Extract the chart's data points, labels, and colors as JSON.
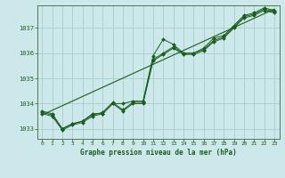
{
  "title": "Graphe pression niveau de la mer (hPa)",
  "background_color": "#cce8ea",
  "grid_color": "#aacccc",
  "line_color": "#1a5c1a",
  "marker_color": "#1a5c1a",
  "xlim": [
    -0.5,
    23.5
  ],
  "ylim": [
    1032.6,
    1037.9
  ],
  "xticks": [
    0,
    1,
    2,
    3,
    4,
    5,
    6,
    7,
    8,
    9,
    10,
    11,
    12,
    13,
    14,
    15,
    16,
    17,
    18,
    19,
    20,
    21,
    22,
    23
  ],
  "yticks": [
    1033,
    1034,
    1035,
    1036,
    1037
  ],
  "series1": [
    1033.7,
    1033.6,
    1033.0,
    1033.2,
    1033.3,
    1033.6,
    1033.6,
    1034.0,
    1034.0,
    1034.1,
    1034.1,
    1035.9,
    1036.55,
    1036.35,
    1036.0,
    1036.0,
    1036.2,
    1036.6,
    1036.7,
    1037.1,
    1037.5,
    1037.6,
    1037.8,
    1037.7
  ],
  "series2": [
    1033.65,
    1033.55,
    1033.0,
    1033.2,
    1033.3,
    1033.55,
    1033.65,
    1034.05,
    1033.75,
    1034.05,
    1034.05,
    1035.75,
    1036.0,
    1036.25,
    1036.0,
    1036.0,
    1036.15,
    1036.5,
    1036.65,
    1037.05,
    1037.45,
    1037.55,
    1037.75,
    1037.65
  ],
  "series3": [
    1033.6,
    1033.5,
    1032.95,
    1033.15,
    1033.25,
    1033.5,
    1033.6,
    1034.0,
    1033.7,
    1034.0,
    1034.0,
    1035.7,
    1035.95,
    1036.2,
    1035.95,
    1035.95,
    1036.1,
    1036.45,
    1036.6,
    1037.0,
    1037.4,
    1037.5,
    1037.7,
    1037.6
  ],
  "trend_x": [
    0,
    23
  ],
  "trend_y": [
    1033.55,
    1037.75
  ],
  "figwidth": 3.2,
  "figheight": 2.0,
  "dpi": 100
}
